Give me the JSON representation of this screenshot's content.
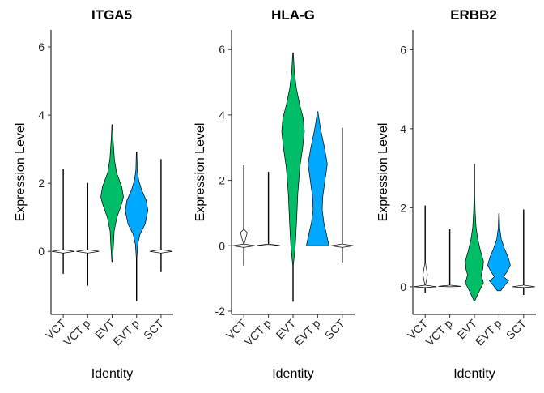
{
  "chart_data": [
    {
      "type": "violin",
      "title": "ITGA5",
      "xlabel": "Identity",
      "ylabel": "Expression Level",
      "categories": [
        "VCT",
        "VCT p",
        "EVT",
        "EVT p",
        "SCT"
      ],
      "ylim": [
        -1.85,
        6.5
      ],
      "yticks": [
        0,
        2,
        4,
        6
      ],
      "series": [
        {
          "category": "VCT",
          "color": "#ffffff",
          "min": -0.65,
          "max": 2.4,
          "profile": [
            [
              -0.65,
              0
            ],
            [
              -0.05,
              0
            ],
            [
              0,
              1
            ],
            [
              0.05,
              0
            ],
            [
              2.4,
              0
            ]
          ]
        },
        {
          "category": "VCT p",
          "color": "#ffffff",
          "min": -1.0,
          "max": 2.0,
          "profile": [
            [
              -1.0,
              0
            ],
            [
              -0.05,
              0
            ],
            [
              0,
              1
            ],
            [
              0.05,
              0
            ],
            [
              2.0,
              0
            ]
          ]
        },
        {
          "category": "EVT",
          "color": "#00be67",
          "min": -0.3,
          "max": 3.72,
          "profile": [
            [
              -0.3,
              0.02
            ],
            [
              0.2,
              0.12
            ],
            [
              0.6,
              0.18
            ],
            [
              1.0,
              0.42
            ],
            [
              1.4,
              0.85
            ],
            [
              1.6,
              1
            ],
            [
              1.9,
              0.85
            ],
            [
              2.3,
              0.4
            ],
            [
              2.7,
              0.2
            ],
            [
              3.1,
              0.12
            ],
            [
              3.4,
              0.06
            ],
            [
              3.72,
              0
            ]
          ]
        },
        {
          "category": "EVT p",
          "color": "#00a9ff",
          "min": -1.45,
          "max": 2.9,
          "profile": [
            [
              -1.45,
              0
            ],
            [
              -0.2,
              0.02
            ],
            [
              0.2,
              0.1
            ],
            [
              0.5,
              0.3
            ],
            [
              0.8,
              0.75
            ],
            [
              1.2,
              1
            ],
            [
              1.5,
              0.85
            ],
            [
              1.8,
              0.45
            ],
            [
              2.1,
              0.18
            ],
            [
              2.4,
              0.06
            ],
            [
              2.9,
              0
            ]
          ]
        },
        {
          "category": "SCT",
          "color": "#ffffff",
          "min": -0.6,
          "max": 2.7,
          "profile": [
            [
              -0.6,
              0
            ],
            [
              -0.05,
              0
            ],
            [
              0,
              1
            ],
            [
              0.05,
              0
            ],
            [
              2.7,
              0
            ]
          ]
        }
      ]
    },
    {
      "type": "violin",
      "title": "HLA-G",
      "xlabel": "Identity",
      "ylabel": "Expression Level",
      "categories": [
        "VCT",
        "VCT p",
        "EVT",
        "EVT p",
        "SCT"
      ],
      "ylim": [
        -2.1,
        6.6
      ],
      "yticks": [
        -2,
        0,
        2,
        4,
        6
      ],
      "series": [
        {
          "category": "VCT",
          "color": "#ffffff",
          "min": -0.6,
          "max": 2.45,
          "profile": [
            [
              -0.6,
              0
            ],
            [
              -0.05,
              0
            ],
            [
              0,
              1
            ],
            [
              0.05,
              0
            ],
            [
              0.4,
              0.3
            ],
            [
              0.5,
              0
            ],
            [
              2.45,
              0
            ]
          ]
        },
        {
          "category": "VCT p",
          "color": "#ffffff",
          "min": 0,
          "max": 2.25,
          "profile": [
            [
              0,
              0
            ],
            [
              0.01,
              1
            ],
            [
              0.05,
              0
            ],
            [
              2.25,
              0
            ]
          ]
        },
        {
          "category": "EVT",
          "color": "#00be67",
          "min": -1.7,
          "max": 5.9,
          "profile": [
            [
              -1.7,
              0
            ],
            [
              -0.6,
              0.02
            ],
            [
              0,
              0.2
            ],
            [
              0.8,
              0.32
            ],
            [
              1.6,
              0.42
            ],
            [
              2.4,
              0.6
            ],
            [
              3.0,
              0.85
            ],
            [
              3.5,
              1
            ],
            [
              3.9,
              0.9
            ],
            [
              4.3,
              0.6
            ],
            [
              4.8,
              0.3
            ],
            [
              5.3,
              0.12
            ],
            [
              5.9,
              0
            ]
          ]
        },
        {
          "category": "EVT p",
          "color": "#00a9ff",
          "min": 0,
          "max": 4.1,
          "profile": [
            [
              0,
              1
            ],
            [
              0.4,
              0.75
            ],
            [
              0.7,
              0.55
            ],
            [
              1.1,
              0.4
            ],
            [
              1.5,
              0.45
            ],
            [
              2.0,
              0.65
            ],
            [
              2.5,
              0.85
            ],
            [
              3.0,
              0.6
            ],
            [
              3.5,
              0.3
            ],
            [
              3.8,
              0.15
            ],
            [
              4.1,
              0
            ]
          ]
        },
        {
          "category": "SCT",
          "color": "#ffffff",
          "min": -0.5,
          "max": 3.6,
          "profile": [
            [
              -0.5,
              0
            ],
            [
              -0.05,
              0
            ],
            [
              0,
              1
            ],
            [
              0.05,
              0
            ],
            [
              3.6,
              0
            ]
          ]
        }
      ]
    },
    {
      "type": "violin",
      "title": "ERBB2",
      "xlabel": "Identity",
      "ylabel": "Expression Level",
      "categories": [
        "VCT",
        "VCT p",
        "EVT",
        "EVT p",
        "SCT"
      ],
      "ylim": [
        -0.7,
        6.5
      ],
      "yticks": [
        0,
        2,
        4,
        6
      ],
      "series": [
        {
          "category": "VCT",
          "color": "#ffffff",
          "min": -0.15,
          "max": 2.05,
          "profile": [
            [
              -0.15,
              0
            ],
            [
              -0.02,
              0
            ],
            [
              0,
              1
            ],
            [
              0.04,
              0
            ],
            [
              0.3,
              0.2
            ],
            [
              0.6,
              0
            ],
            [
              2.05,
              0
            ]
          ]
        },
        {
          "category": "VCT p",
          "color": "#ffffff",
          "min": 0,
          "max": 1.45,
          "profile": [
            [
              0,
              0
            ],
            [
              0.01,
              1
            ],
            [
              0.04,
              0
            ],
            [
              1.45,
              0
            ]
          ]
        },
        {
          "category": "EVT",
          "color": "#00be67",
          "min": -0.35,
          "max": 3.1,
          "profile": [
            [
              -0.35,
              0.05
            ],
            [
              -0.1,
              0.45
            ],
            [
              0.1,
              0.8
            ],
            [
              0.3,
              0.6
            ],
            [
              0.45,
              0.75
            ],
            [
              0.65,
              0.8
            ],
            [
              0.9,
              0.55
            ],
            [
              1.2,
              0.3
            ],
            [
              1.5,
              0.15
            ],
            [
              1.9,
              0.07
            ],
            [
              2.3,
              0.03
            ],
            [
              3.1,
              0
            ]
          ]
        },
        {
          "category": "EVT p",
          "color": "#00a9ff",
          "min": -0.1,
          "max": 1.85,
          "profile": [
            [
              -0.1,
              0.15
            ],
            [
              0.05,
              0.55
            ],
            [
              0.15,
              0.85
            ],
            [
              0.25,
              0.4
            ],
            [
              0.4,
              0.75
            ],
            [
              0.55,
              1
            ],
            [
              0.75,
              0.8
            ],
            [
              0.95,
              0.5
            ],
            [
              1.2,
              0.2
            ],
            [
              1.5,
              0.06
            ],
            [
              1.85,
              0
            ]
          ]
        },
        {
          "category": "SCT",
          "color": "#ffffff",
          "min": -0.2,
          "max": 1.95,
          "profile": [
            [
              -0.2,
              0
            ],
            [
              -0.02,
              0
            ],
            [
              0,
              1
            ],
            [
              0.04,
              0
            ],
            [
              1.95,
              0
            ]
          ]
        }
      ]
    }
  ]
}
